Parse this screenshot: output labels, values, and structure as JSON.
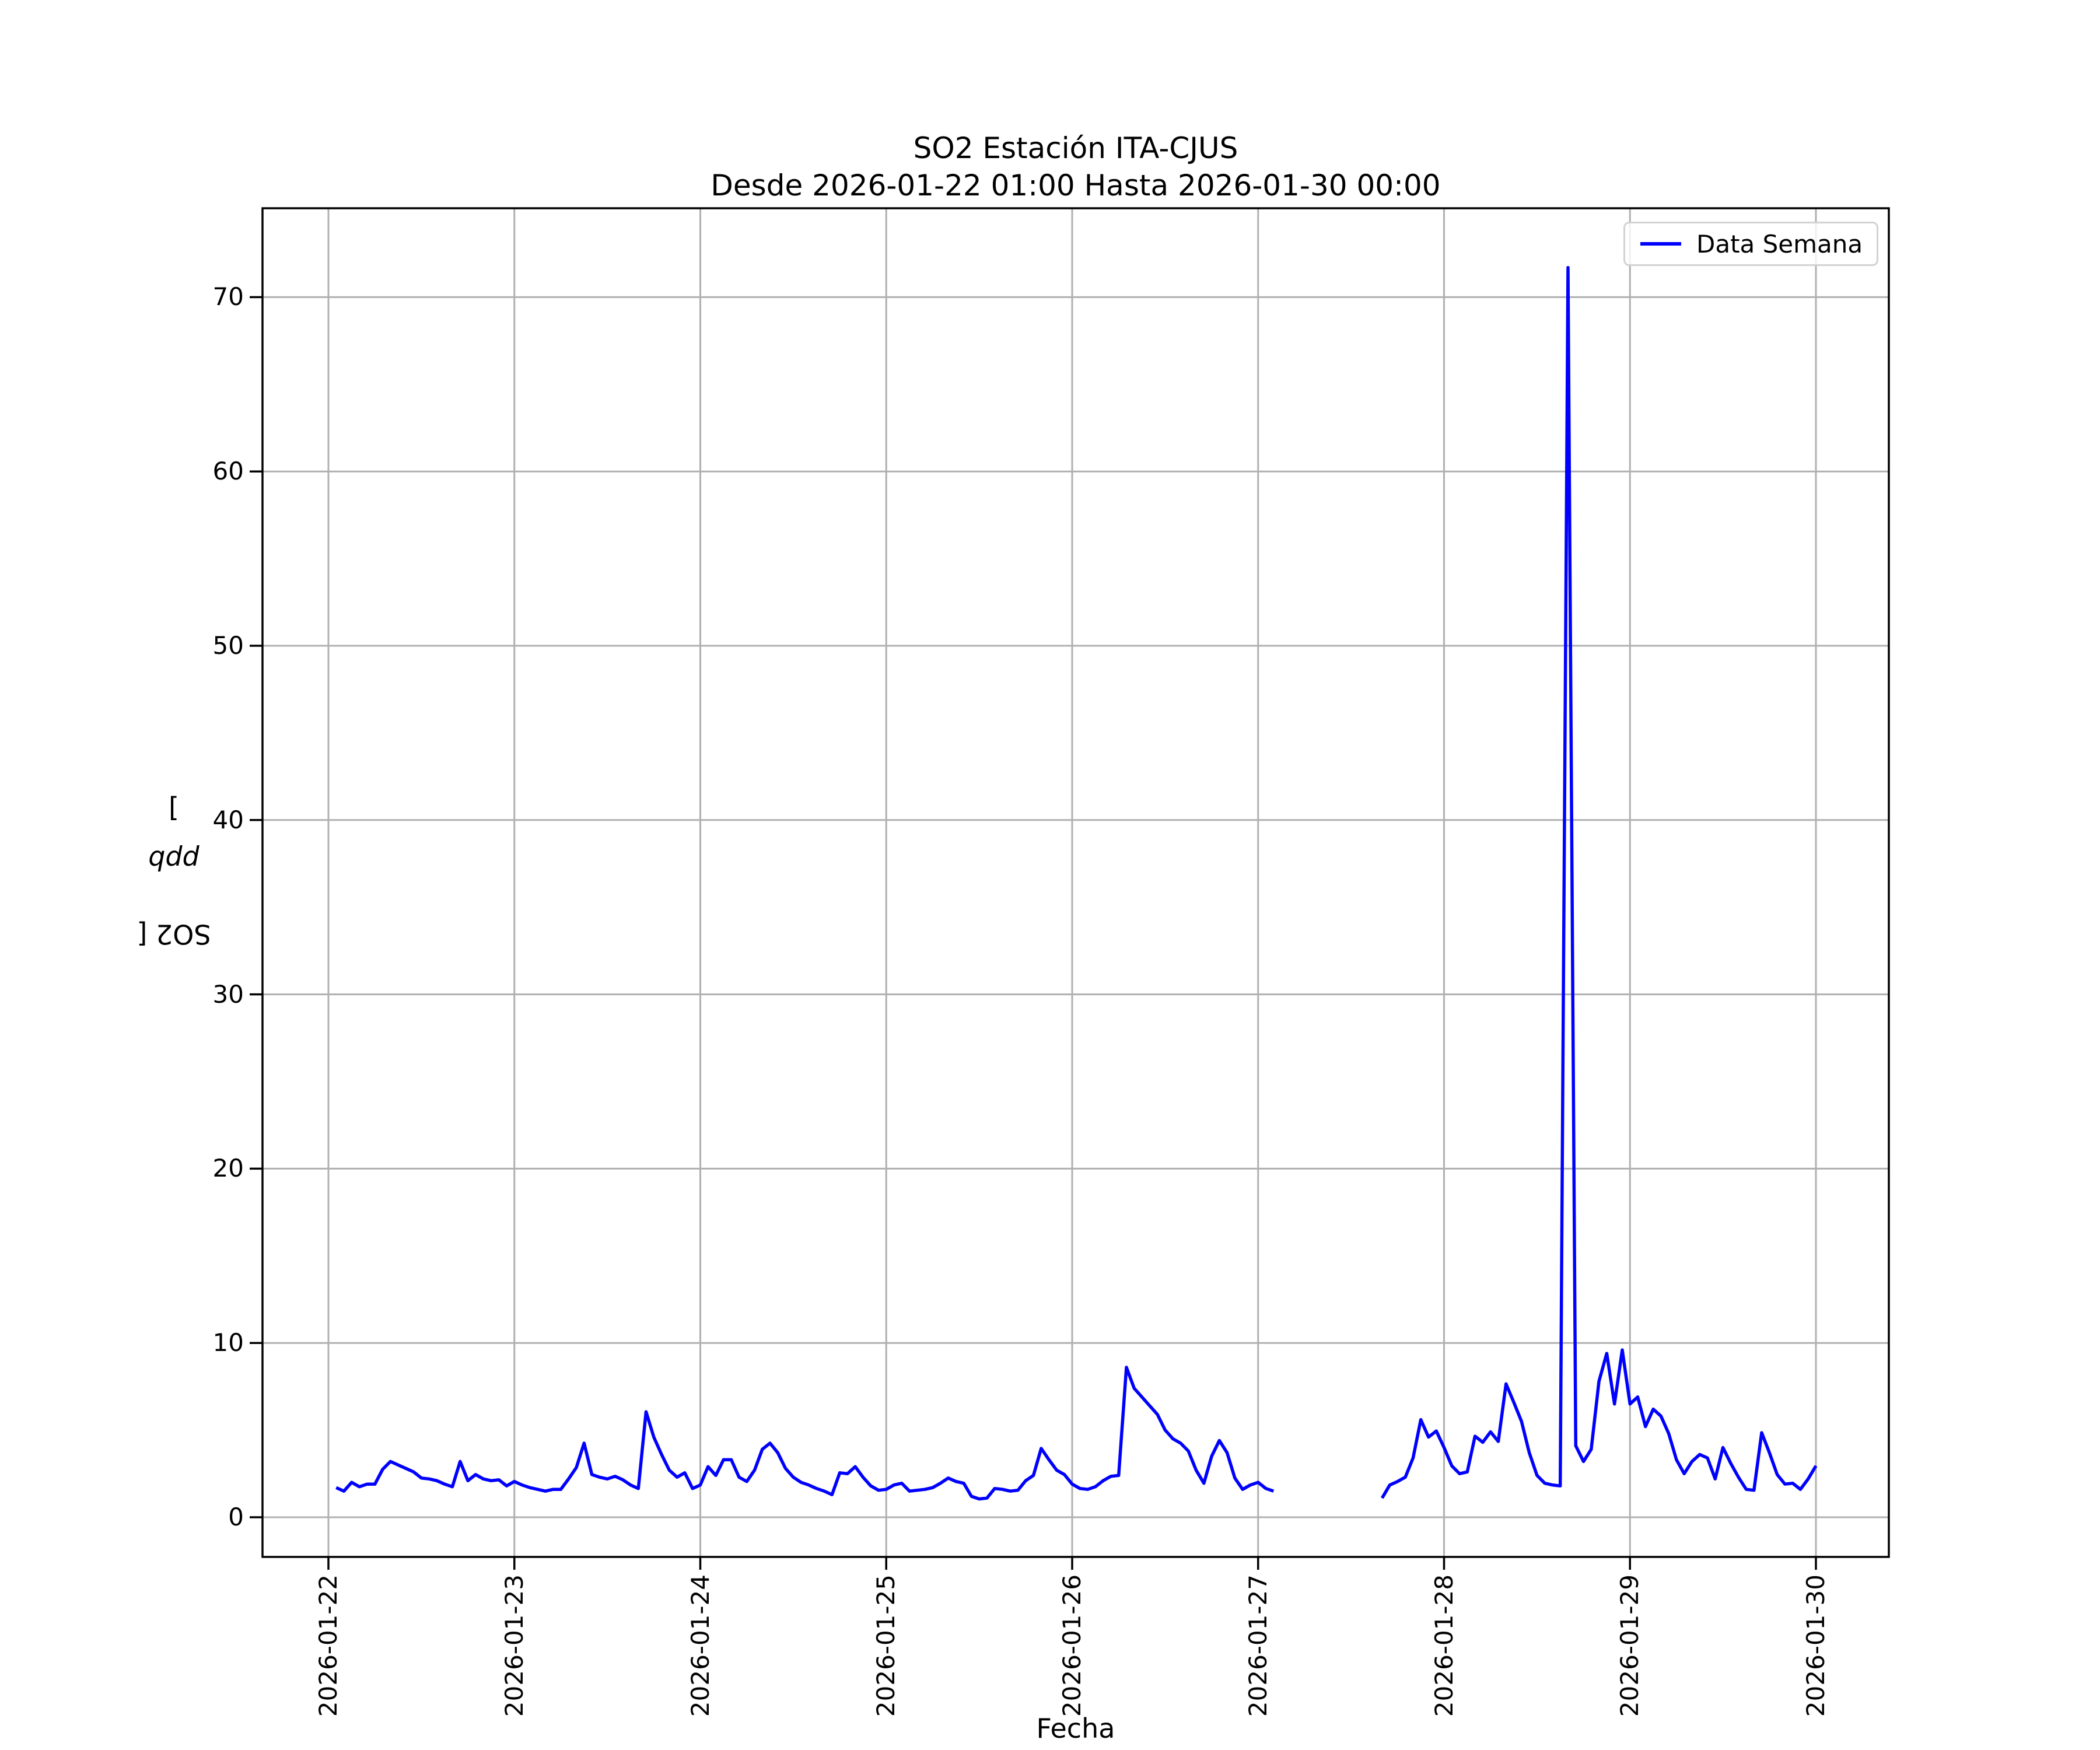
{
  "figure": {
    "title_line1": "SO2 Estación ITA-CJUS",
    "title_line2": "Desde 2026-01-22 01:00 Hasta 2026-01-30 00:00",
    "xlabel": "Fecha",
    "ylabel_prefix": "SO2 [",
    "ylabel_italic": "ppb",
    "ylabel_suffix": "]",
    "legend": {
      "label": "Data Semana"
    }
  },
  "colors": {
    "line": "#0000ff",
    "grid": "#b0b0b0",
    "spine": "#000000",
    "legend_border": "#d2d2d2",
    "background": "#ffffff"
  },
  "chart_data": {
    "type": "line",
    "title": "SO2 Estación ITA-CJUS",
    "subtitle": "Desde 2026-01-22 01:00 Hasta 2026-01-30 00:00",
    "xlabel": "Fecha",
    "ylabel": "SO2 [ppb]",
    "grid": true,
    "legend_position": "upper right",
    "legend_entries": [
      "Data Semana"
    ],
    "y_ticks": [
      0,
      10,
      20,
      30,
      40,
      50,
      60,
      70
    ],
    "ylim": [
      -2.3,
      75.2
    ],
    "x_tick_labels": [
      "2026-01-22",
      "2026-01-23",
      "2026-01-24",
      "2026-01-25",
      "2026-01-26",
      "2026-01-27",
      "2026-01-28",
      "2026-01-29",
      "2026-01-30"
    ],
    "x_unit": "hours since 2026-01-22 00:00",
    "data_gap": "no data between 2026-01-27 02:00 and 2026-01-27 16:00",
    "peak": {
      "time": "2026-01-28 16:00",
      "value": 71.7
    },
    "series": [
      {
        "name": "Data Semana",
        "color": "#0000ff",
        "segments": [
          [
            [
              1,
              1.7
            ],
            [
              2,
              1.5
            ],
            [
              3,
              2.0
            ],
            [
              4,
              1.75
            ],
            [
              5,
              1.9
            ],
            [
              6,
              1.9
            ],
            [
              7,
              2.75
            ],
            [
              8,
              3.2
            ],
            [
              9,
              3.0
            ],
            [
              10,
              2.8
            ],
            [
              11,
              2.6
            ],
            [
              12,
              2.25
            ],
            [
              13,
              2.2
            ],
            [
              14,
              2.1
            ],
            [
              15,
              1.9
            ],
            [
              16,
              1.75
            ],
            [
              17,
              3.2
            ],
            [
              18,
              2.1
            ],
            [
              19,
              2.45
            ],
            [
              20,
              2.2
            ],
            [
              21,
              2.1
            ],
            [
              22,
              2.15
            ],
            [
              23,
              1.8
            ],
            [
              24,
              2.05
            ],
            [
              25,
              1.85
            ],
            [
              26,
              1.7
            ],
            [
              27,
              1.6
            ],
            [
              28,
              1.5
            ],
            [
              29,
              1.6
            ],
            [
              30,
              1.6
            ],
            [
              31,
              2.2
            ],
            [
              32,
              2.85
            ],
            [
              33,
              4.25
            ],
            [
              34,
              2.45
            ],
            [
              35,
              2.3
            ],
            [
              36,
              2.2
            ],
            [
              37,
              2.35
            ],
            [
              38,
              2.15
            ],
            [
              39,
              1.85
            ],
            [
              40,
              1.65
            ],
            [
              41,
              6.05
            ],
            [
              42,
              4.6
            ],
            [
              43,
              3.6
            ],
            [
              44,
              2.7
            ],
            [
              45,
              2.3
            ],
            [
              46,
              2.55
            ],
            [
              47,
              1.65
            ],
            [
              48,
              1.85
            ],
            [
              49,
              2.9
            ],
            [
              50,
              2.4
            ],
            [
              51,
              3.3
            ],
            [
              52,
              3.3
            ],
            [
              53,
              2.3
            ],
            [
              54,
              2.05
            ],
            [
              55,
              2.7
            ],
            [
              56,
              3.9
            ],
            [
              57,
              4.25
            ],
            [
              58,
              3.7
            ],
            [
              59,
              2.8
            ],
            [
              60,
              2.3
            ],
            [
              61,
              2.0
            ],
            [
              62,
              1.85
            ],
            [
              63,
              1.65
            ],
            [
              64,
              1.5
            ],
            [
              65,
              1.3
            ],
            [
              66,
              2.55
            ],
            [
              67,
              2.5
            ],
            [
              68,
              2.9
            ],
            [
              69,
              2.3
            ],
            [
              70,
              1.8
            ],
            [
              71,
              1.55
            ],
            [
              72,
              1.6
            ],
            [
              73,
              1.85
            ],
            [
              74,
              1.95
            ],
            [
              75,
              1.5
            ],
            [
              76,
              1.55
            ],
            [
              77,
              1.6
            ],
            [
              78,
              1.7
            ],
            [
              79,
              1.95
            ],
            [
              80,
              2.25
            ],
            [
              81,
              2.05
            ],
            [
              82,
              1.95
            ],
            [
              83,
              1.2
            ],
            [
              84,
              1.05
            ],
            [
              85,
              1.1
            ],
            [
              86,
              1.65
            ],
            [
              87,
              1.6
            ],
            [
              88,
              1.5
            ],
            [
              89,
              1.55
            ],
            [
              90,
              2.1
            ],
            [
              91,
              2.4
            ],
            [
              92,
              3.95
            ],
            [
              93,
              3.3
            ],
            [
              94,
              2.7
            ],
            [
              95,
              2.45
            ],
            [
              96,
              1.9
            ],
            [
              97,
              1.65
            ],
            [
              98,
              1.6
            ],
            [
              99,
              1.75
            ],
            [
              100,
              2.1
            ],
            [
              101,
              2.35
            ],
            [
              102,
              2.4
            ],
            [
              103,
              8.6
            ],
            [
              104,
              7.4
            ],
            [
              105,
              6.9
            ],
            [
              106,
              6.4
            ],
            [
              107,
              5.9
            ],
            [
              108,
              5.0
            ],
            [
              109,
              4.5
            ],
            [
              110,
              4.25
            ],
            [
              111,
              3.8
            ],
            [
              112,
              2.7
            ],
            [
              113,
              1.95
            ],
            [
              114,
              3.5
            ],
            [
              115,
              4.4
            ],
            [
              116,
              3.7
            ],
            [
              117,
              2.25
            ],
            [
              118,
              1.6
            ],
            [
              119,
              1.85
            ],
            [
              120,
              2.0
            ],
            [
              121,
              1.65
            ],
            [
              122,
              1.5
            ]
          ],
          [
            [
              136,
              1.1
            ],
            [
              137,
              1.85
            ],
            [
              138,
              2.05
            ],
            [
              139,
              2.3
            ],
            [
              140,
              3.4
            ],
            [
              141,
              5.6
            ],
            [
              142,
              4.6
            ],
            [
              143,
              4.95
            ],
            [
              144,
              4.0
            ],
            [
              145,
              2.95
            ],
            [
              146,
              2.5
            ],
            [
              147,
              2.6
            ],
            [
              148,
              4.65
            ],
            [
              149,
              4.3
            ],
            [
              150,
              4.9
            ],
            [
              151,
              4.35
            ],
            [
              152,
              7.65
            ],
            [
              153,
              6.6
            ],
            [
              154,
              5.5
            ],
            [
              155,
              3.7
            ],
            [
              156,
              2.4
            ],
            [
              157,
              1.95
            ],
            [
              158,
              1.85
            ],
            [
              159,
              1.8
            ],
            [
              160,
              71.7
            ],
            [
              161,
              4.1
            ],
            [
              162,
              3.2
            ],
            [
              163,
              3.9
            ],
            [
              164,
              7.8
            ],
            [
              165,
              9.4
            ],
            [
              166,
              6.5
            ],
            [
              167,
              9.6
            ],
            [
              168,
              6.5
            ],
            [
              169,
              6.9
            ],
            [
              170,
              5.2
            ],
            [
              171,
              6.2
            ],
            [
              172,
              5.8
            ],
            [
              173,
              4.8
            ],
            [
              174,
              3.3
            ],
            [
              175,
              2.5
            ],
            [
              176,
              3.2
            ],
            [
              177,
              3.6
            ],
            [
              178,
              3.4
            ],
            [
              179,
              2.2
            ],
            [
              180,
              4.0
            ],
            [
              181,
              3.1
            ],
            [
              182,
              2.3
            ],
            [
              183,
              1.6
            ],
            [
              184,
              1.55
            ],
            [
              185,
              4.85
            ],
            [
              186,
              3.7
            ],
            [
              187,
              2.45
            ],
            [
              188,
              1.9
            ],
            [
              189,
              1.95
            ],
            [
              190,
              1.6
            ],
            [
              191,
              2.2
            ],
            [
              192,
              2.95
            ]
          ]
        ]
      }
    ]
  }
}
